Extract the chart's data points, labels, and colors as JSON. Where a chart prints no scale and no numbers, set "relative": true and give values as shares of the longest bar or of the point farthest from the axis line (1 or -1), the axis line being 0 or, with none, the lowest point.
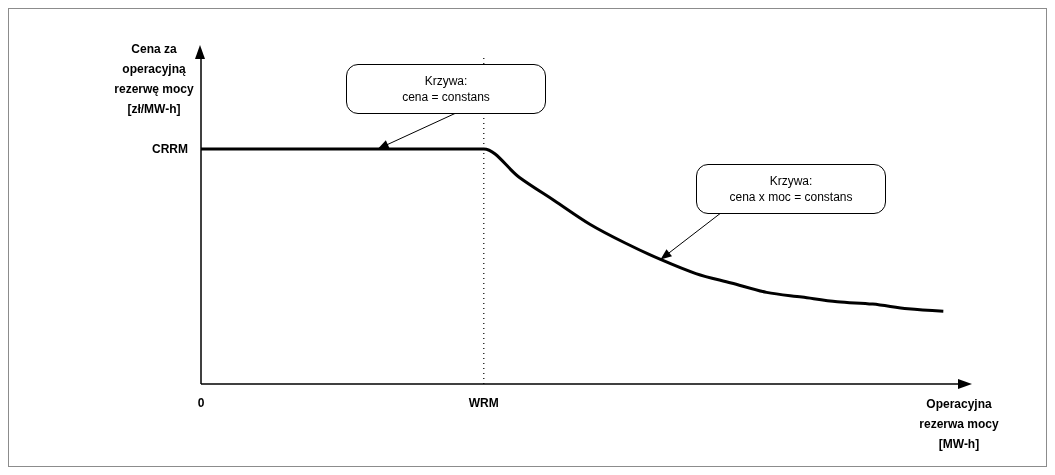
{
  "chart_data": {
    "type": "line",
    "relative": true,
    "xlabel": "Operacyjna\nrezerwa mocy\n[MW-h]",
    "ylabel": "Cena za\noperacyjną\nrezerwę mocy\n[zł/MW-h]",
    "categories": [
      "0",
      null,
      null,
      null,
      null,
      null,
      null,
      null,
      "WRM",
      null,
      null,
      null,
      null,
      null,
      null,
      null,
      null,
      null,
      null,
      null,
      null,
      null
    ],
    "series": [
      {
        "color": "#000000",
        "values": [
          1,
          1,
          1,
          1,
          1,
          1,
          1,
          1,
          1,
          0.88,
          0.78,
          0.68,
          0.6,
          0.53,
          0.47,
          0.43,
          0.39,
          0.37,
          0.35,
          0.34,
          0.32,
          0.31
        ]
      }
    ],
    "marker": "none",
    "line_style": "solid",
    "ref_lines": [
      {
        "axis": "x",
        "value": "WRM",
        "line_style": "dotted",
        "color": "#000000"
      }
    ],
    "annotations": [
      "CRRM",
      "Krzywa:\ncena = constans",
      "Krzywa:\ncena x moc = constans"
    ]
  }
}
